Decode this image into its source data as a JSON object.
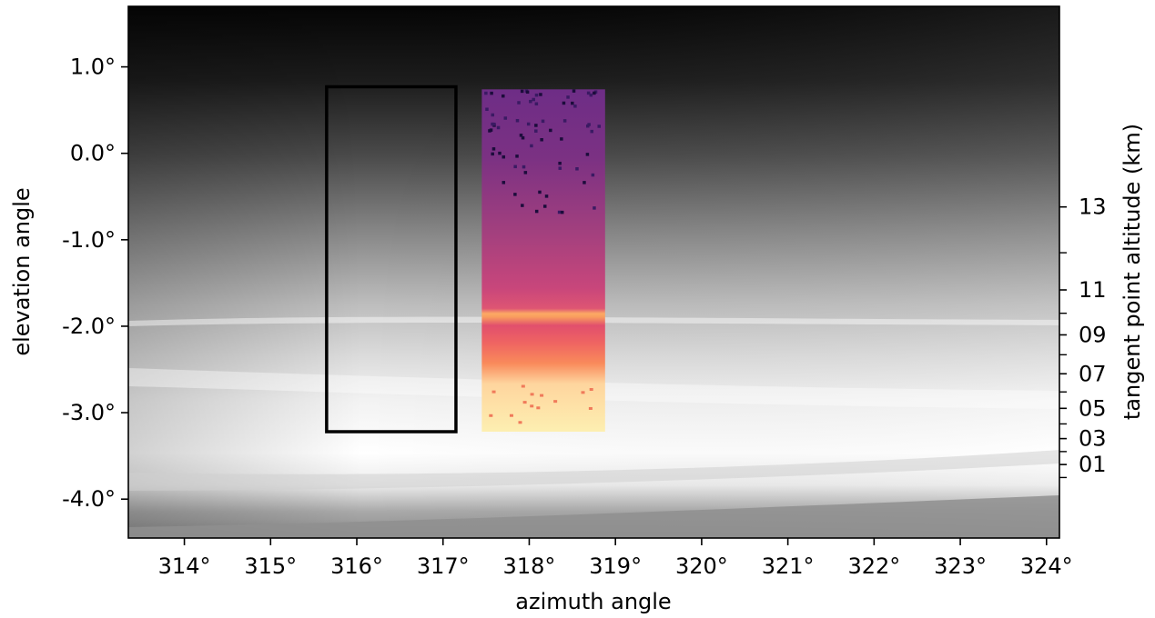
{
  "chart_data": {
    "type": "heatmap",
    "title": "",
    "xlabel": "azimuth angle",
    "ylabel": "elevation angle",
    "y2label": "tangent point altitude (km)",
    "xlim": [
      313.35,
      324.15
    ],
    "ylim": [
      -4.45,
      1.7
    ],
    "x_ticks": [
      314,
      315,
      316,
      317,
      318,
      319,
      320,
      321,
      322,
      323,
      324
    ],
    "x_tick_labels": [
      "314°",
      "315°",
      "316°",
      "317°",
      "318°",
      "319°",
      "320°",
      "321°",
      "322°",
      "323°",
      "324°"
    ],
    "y_ticks": [
      1.0,
      0.0,
      -1.0,
      -2.0,
      -3.0,
      -4.0
    ],
    "y_tick_labels": [
      "1.0°",
      "0.0°",
      "-1.0°",
      "-2.0°",
      "-3.0°",
      "-4.0°"
    ],
    "y2_labeled_ticks": [
      {
        "elevation": -0.62,
        "label": "13"
      },
      {
        "elevation": -1.58,
        "label": "11"
      },
      {
        "elevation": -2.1,
        "label": "09"
      },
      {
        "elevation": -2.55,
        "label": "07"
      },
      {
        "elevation": -2.95,
        "label": "05"
      },
      {
        "elevation": -3.3,
        "label": "03"
      },
      {
        "elevation": -3.6,
        "label": "01"
      }
    ],
    "y2_minor_ticks_elevation": [
      -1.15,
      -1.85,
      -2.33,
      -2.76,
      -3.13,
      -3.45,
      -3.75
    ],
    "background_image": "grayscale sky photograph: dark at top, bright clouds near bottom",
    "selection_box": {
      "azimuth": [
        315.65,
        317.15
      ],
      "elevation": [
        -3.22,
        0.77
      ]
    },
    "heatmap_overlay": {
      "azimuth": [
        317.45,
        318.88
      ],
      "elevation": [
        -3.22,
        0.74
      ],
      "colormap": "magma"
    },
    "grid": false,
    "legend": "none"
  }
}
